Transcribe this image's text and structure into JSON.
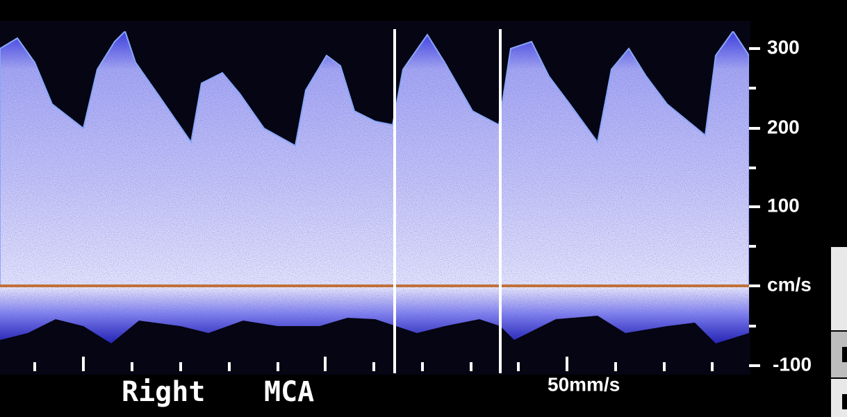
{
  "scale": {
    "labels": [
      "300",
      "200",
      "100",
      "cm/s",
      "-100"
    ]
  },
  "footer": {
    "vessel": [
      "Right",
      "MCA"
    ],
    "sweep_speed": "50mm/s"
  }
}
